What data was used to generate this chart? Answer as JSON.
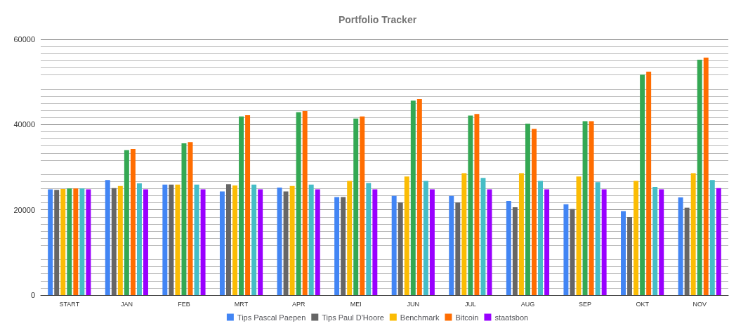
{
  "chart_data": {
    "type": "bar",
    "title": "Portfolio Tracker",
    "categories": [
      "START",
      "JAN",
      "FEB",
      "MRT",
      "APR",
      "MEI",
      "JUN",
      "JUL",
      "AUG",
      "SEP",
      "OKT",
      "NOV"
    ],
    "series": [
      {
        "name": "Tips Pascal Paepen",
        "color": "#4285f4",
        "values": [
          24800,
          27000,
          25900,
          24300,
          25200,
          23000,
          23300,
          23300,
          22100,
          21300,
          19700,
          22900
        ]
      },
      {
        "name": "Tips Paul D'Hoore",
        "color": "#666666",
        "values": [
          24700,
          25100,
          25900,
          26000,
          24300,
          23000,
          21700,
          21700,
          20600,
          20200,
          18300,
          20500
        ]
      },
      {
        "name": "Benchmark",
        "color": "#fbbc04",
        "values": [
          24900,
          25600,
          25900,
          25700,
          25600,
          26800,
          27800,
          28600,
          28600,
          27800,
          26800,
          28600
        ]
      },
      {
        "color": "#34a853",
        "values": [
          25000,
          34000,
          35600,
          41900,
          42900,
          41400,
          45600,
          42100,
          40200,
          40800,
          51700,
          55200
        ]
      },
      {
        "name": "Bitcoin",
        "color": "#ff6d01",
        "values": [
          25000,
          34300,
          35900,
          42200,
          43200,
          41900,
          46000,
          42500,
          39000,
          40800,
          52400,
          55700
        ]
      },
      {
        "color": "#46bdc6",
        "values": [
          25000,
          26200,
          25900,
          25900,
          25900,
          26300,
          26800,
          27500,
          26800,
          26500,
          25400,
          27000
        ]
      },
      {
        "name": "staatsbon",
        "color": "#9900ff",
        "values": [
          24800,
          24800,
          24800,
          24800,
          24800,
          24800,
          24800,
          24800,
          24800,
          24800,
          24800,
          25100
        ]
      }
    ],
    "ylim": [
      0,
      60000
    ],
    "yticks": [
      0,
      20000,
      40000,
      60000
    ],
    "grid": "y",
    "legend": "bottom"
  }
}
